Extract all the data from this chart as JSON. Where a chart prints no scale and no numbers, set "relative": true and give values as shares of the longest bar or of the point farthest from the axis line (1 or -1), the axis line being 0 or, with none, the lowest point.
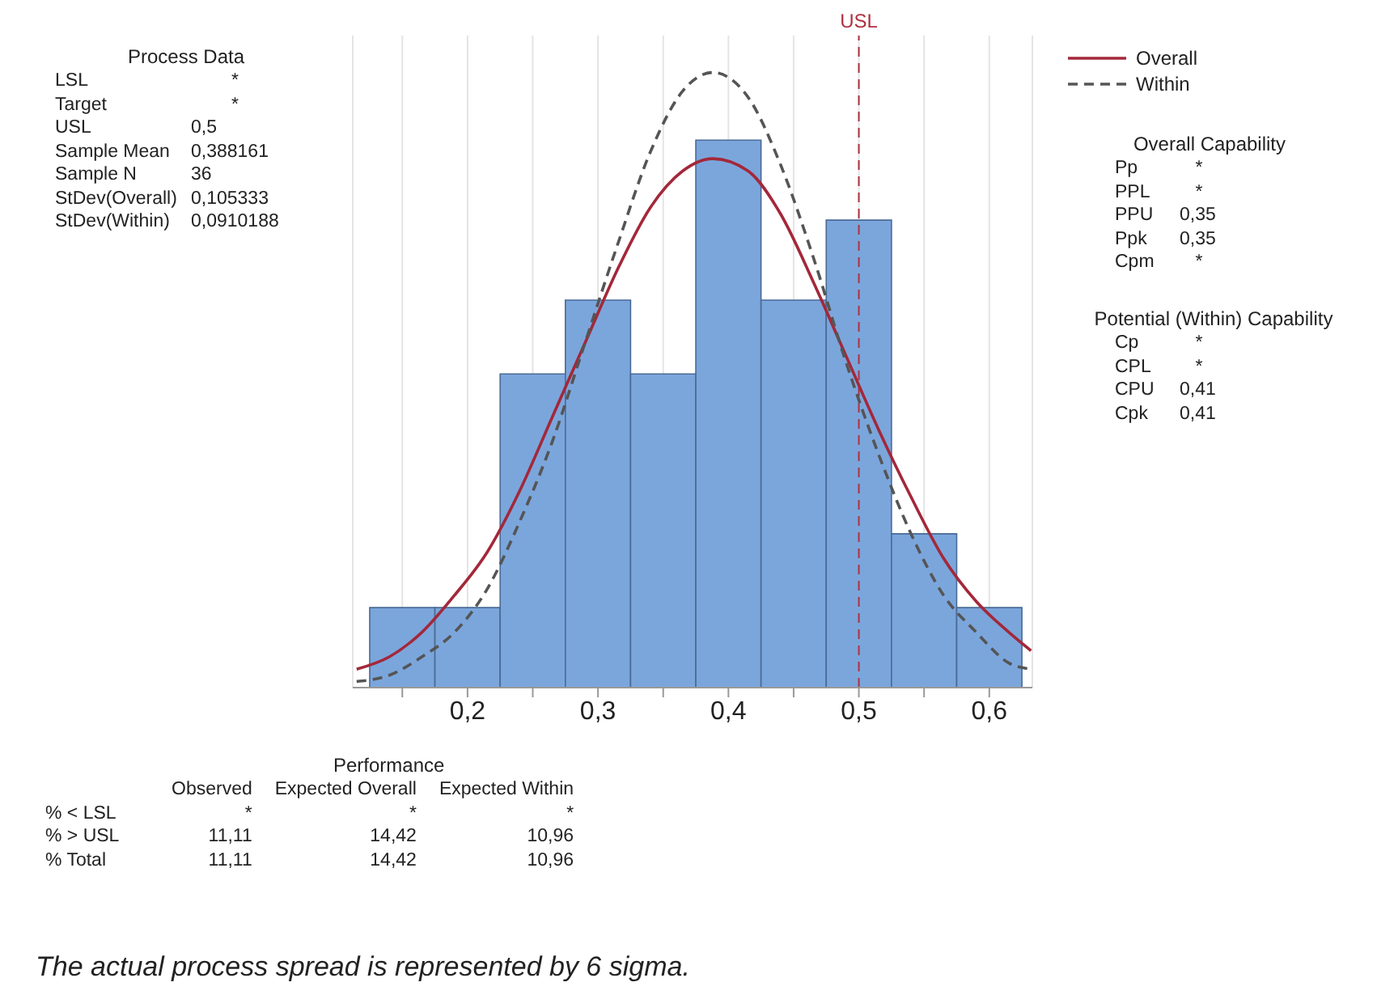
{
  "chart_data": [
    {
      "type": "other",
      "title": "Process Data",
      "annotations": [
        "LSL",
        "*",
        "Target",
        "*",
        "USL",
        "0,5",
        "Sample Mean",
        "0,388161",
        "Sample N",
        "36",
        "StDev(Overall)",
        "0,105333",
        "StDev(Within)",
        "0,0910188"
      ]
    },
    {
      "type": "histogram",
      "relative": true,
      "bins": [
        0.125,
        0.175,
        0.225,
        0.275,
        0.325,
        0.375,
        0.425,
        0.475,
        0.525,
        0.575,
        0.625
      ],
      "values": [
        0.13,
        0.13,
        0.51,
        0.63,
        0.51,
        0.89,
        0.63,
        0.76,
        0.25,
        0.13
      ],
      "color": "#7ba6dc",
      "series": [
        {
          "name": "Overall",
          "type": "line",
          "line_style": "solid",
          "color": "#a3283a",
          "x": [
            0.115,
            0.14,
            0.165,
            0.19,
            0.215,
            0.24,
            0.265,
            0.29,
            0.315,
            0.34,
            0.365,
            0.388,
            0.415,
            0.44,
            0.465,
            0.49,
            0.515,
            0.54,
            0.565,
            0.59,
            0.615,
            0.632
          ],
          "values": [
            0.03,
            0.05,
            0.09,
            0.15,
            0.22,
            0.32,
            0.44,
            0.56,
            0.68,
            0.78,
            0.84,
            0.86,
            0.84,
            0.77,
            0.66,
            0.54,
            0.42,
            0.31,
            0.21,
            0.14,
            0.09,
            0.06
          ]
        },
        {
          "name": "Within",
          "type": "line",
          "line_style": "dashed",
          "color": "#555555",
          "x": [
            0.115,
            0.14,
            0.165,
            0.19,
            0.215,
            0.24,
            0.265,
            0.29,
            0.315,
            0.34,
            0.365,
            0.388,
            0.415,
            0.44,
            0.465,
            0.49,
            0.515,
            0.54,
            0.565,
            0.59,
            0.615,
            0.632
          ],
          "values": [
            0.01,
            0.02,
            0.05,
            0.09,
            0.16,
            0.27,
            0.4,
            0.56,
            0.72,
            0.87,
            0.97,
            1,
            0.96,
            0.85,
            0.7,
            0.53,
            0.38,
            0.25,
            0.15,
            0.09,
            0.04,
            0.03
          ]
        }
      ],
      "xlim": [
        0.112,
        0.633
      ],
      "xticks": [
        {
          "value": 0.15,
          "label": null
        },
        {
          "value": 0.2,
          "label": "0,2"
        },
        {
          "value": 0.25,
          "label": null
        },
        {
          "value": 0.3,
          "label": "0,3"
        },
        {
          "value": 0.35,
          "label": null
        },
        {
          "value": 0.4,
          "label": "0,4"
        },
        {
          "value": 0.45,
          "label": null
        },
        {
          "value": 0.5,
          "label": "0,5"
        },
        {
          "value": 0.55,
          "label": null
        },
        {
          "value": 0.6,
          "label": "0,6"
        }
      ],
      "ref_lines": [
        {
          "axis": "x",
          "value": 0.5,
          "label": "USL",
          "color": "#b03040",
          "line_style": "dashed"
        }
      ],
      "grid": "x",
      "legend": "top right",
      "annotations": [
        "The actual process spread is represented by 6 sigma."
      ]
    },
    {
      "type": "other",
      "title": "Overall Capability",
      "annotations": [
        "Pp",
        "*",
        "PPL",
        "*",
        "PPU",
        "0,35",
        "Ppk",
        "0,35",
        "Cpm",
        "*"
      ]
    },
    {
      "type": "other",
      "title": "Potential (Within) Capability",
      "annotations": [
        "Cp",
        "*",
        "CPL",
        "*",
        "CPU",
        "0,41",
        "Cpk",
        "0,41"
      ]
    },
    {
      "type": "other",
      "title": "Performance",
      "annotations": [
        "Observed",
        "Expected Overall",
        "Expected Within",
        "% < LSL",
        "*",
        "*",
        "*",
        "% > USL",
        "11,11",
        "14,42",
        "10,96",
        "% Total",
        "11,11",
        "14,42",
        "10,96"
      ]
    }
  ]
}
